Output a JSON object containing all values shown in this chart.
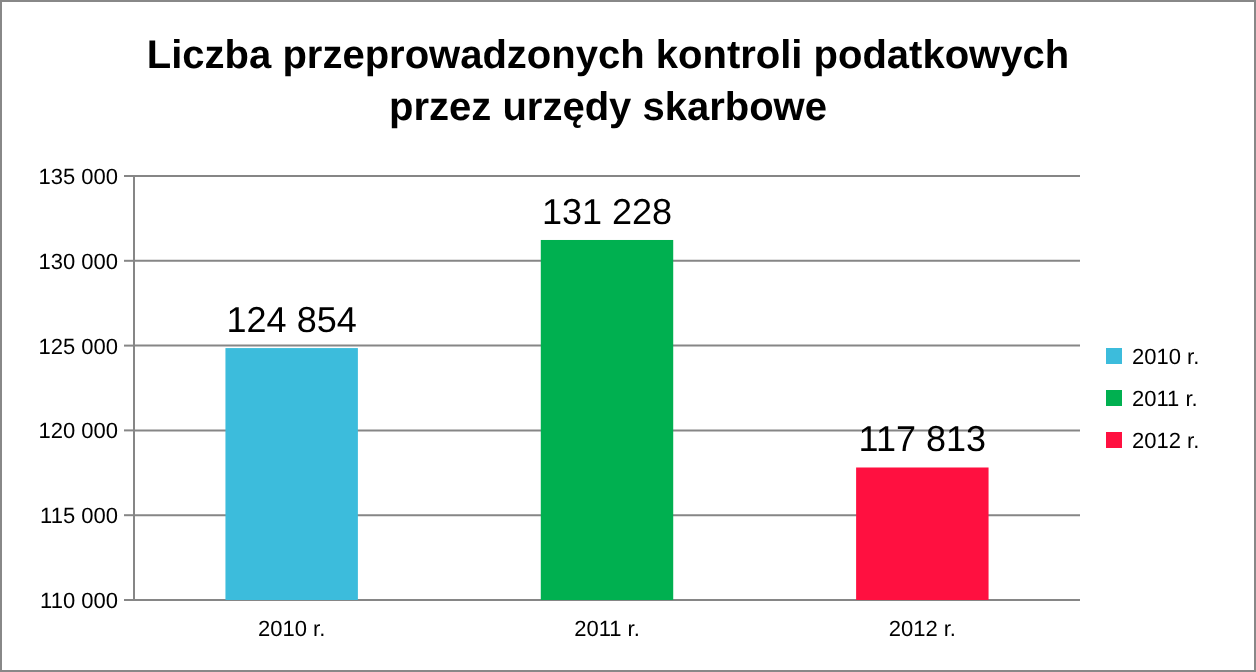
{
  "chart_data": {
    "type": "bar",
    "title": "Liczba przeprowadzonych kontroli podatkowych przez urzędy skarbowe",
    "categories": [
      "2010 r.",
      "2011 r.",
      "2012 r."
    ],
    "series": [
      {
        "name": "2010 r.",
        "color": "#3cbcdc",
        "values": [
          124854,
          null,
          null
        ],
        "value_labels": [
          "124 854",
          null,
          null
        ]
      },
      {
        "name": "2011 r.",
        "color": "#00b050",
        "values": [
          null,
          131228,
          null
        ],
        "value_labels": [
          null,
          "131 228",
          null
        ]
      },
      {
        "name": "2012 r.",
        "color": "#ff1040",
        "values": [
          null,
          null,
          117813
        ],
        "value_labels": [
          null,
          null,
          "117 813"
        ]
      }
    ],
    "ylim": [
      110000,
      135000
    ],
    "yticks": [
      {
        "value": 110000,
        "label": "110 000"
      },
      {
        "value": 115000,
        "label": "115 000"
      },
      {
        "value": 120000,
        "label": "120 000"
      },
      {
        "value": 125000,
        "label": "125 000"
      },
      {
        "value": 130000,
        "label": "130 000"
      },
      {
        "value": 135000,
        "label": "135 000"
      }
    ],
    "grid": "y",
    "legend": "right"
  }
}
